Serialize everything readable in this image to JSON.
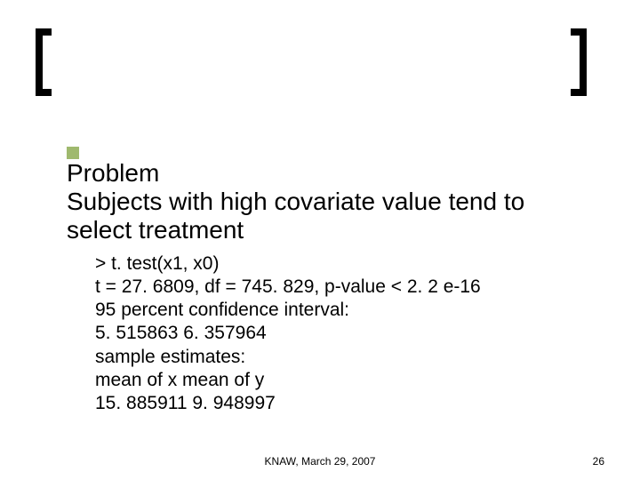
{
  "bullet_color": "#9fb96e",
  "heading": {
    "line1": "Problem",
    "line2": "Subjects with high covariate value tend to select treatment"
  },
  "code": {
    "l1": "> t. test(x1, x0)",
    "l2": "t = 27. 6809, df = 745. 829, p-value < 2. 2 e-16",
    "l3": "95 percent confidence interval:",
    "l4": " 5. 515863 6. 357964",
    "l5": "sample estimates:",
    "l6": "mean of x mean of y",
    "l7": "15. 885911  9. 948997"
  },
  "footer": {
    "date": "KNAW, March 29, 2007",
    "page": "26"
  }
}
